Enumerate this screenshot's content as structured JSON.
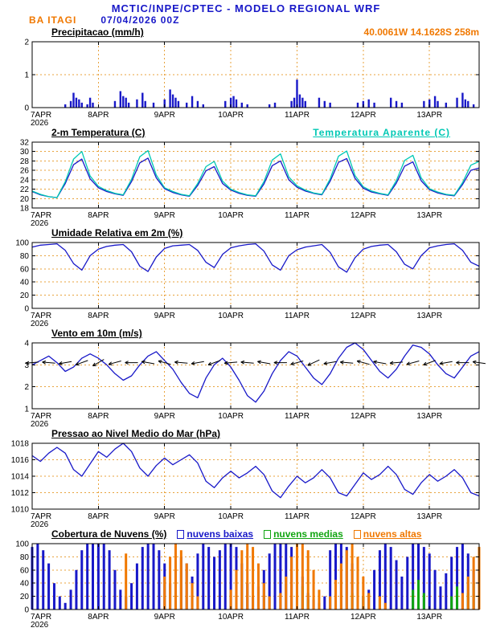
{
  "palette": {
    "blue": "#1818c8",
    "orange": "#f07800",
    "cyan": "#00c8b4",
    "green": "#11a511"
  },
  "header": {
    "title": "MCTIC/INPE/CPTEC - MODELO REGIONAL WRF",
    "station": "BA ITAGI",
    "run": "07/04/2026 00Z",
    "location": "40.0061W 14.1628S 258m"
  },
  "x_axis": {
    "total_hours": 162,
    "tick_labels": [
      "7APR",
      "8APR",
      "9APR",
      "10APR",
      "11APR",
      "12APR",
      "13APR"
    ],
    "year_label": "2026"
  },
  "chart_data": [
    {
      "id": "precip",
      "type": "bar",
      "title": "Precipitacao (mm/h)",
      "ylabel": "mm/h",
      "ylim": [
        0,
        2
      ],
      "yticks": [
        0,
        1,
        2
      ],
      "series": [
        {
          "kind": "bars",
          "name": "precipitacao",
          "color": "#1818c8",
          "pairs": [
            [
              12,
              0.1
            ],
            [
              14,
              0.2
            ],
            [
              15,
              0.45
            ],
            [
              16,
              0.3
            ],
            [
              17,
              0.25
            ],
            [
              18,
              0.15
            ],
            [
              20,
              0.1
            ],
            [
              21,
              0.3
            ],
            [
              22,
              0.15
            ],
            [
              30,
              0.2
            ],
            [
              32,
              0.5
            ],
            [
              33,
              0.35
            ],
            [
              34,
              0.3
            ],
            [
              35,
              0.15
            ],
            [
              38,
              0.25
            ],
            [
              40,
              0.45
            ],
            [
              41,
              0.2
            ],
            [
              44,
              0.15
            ],
            [
              48,
              0.25
            ],
            [
              50,
              0.55
            ],
            [
              51,
              0.4
            ],
            [
              52,
              0.3
            ],
            [
              53,
              0.2
            ],
            [
              56,
              0.15
            ],
            [
              58,
              0.35
            ],
            [
              60,
              0.2
            ],
            [
              62,
              0.1
            ],
            [
              70,
              0.2
            ],
            [
              72,
              0.3
            ],
            [
              73,
              0.35
            ],
            [
              74,
              0.25
            ],
            [
              76,
              0.15
            ],
            [
              78,
              0.1
            ],
            [
              86,
              0.1
            ],
            [
              88,
              0.15
            ],
            [
              94,
              0.2
            ],
            [
              95,
              0.3
            ],
            [
              96,
              0.85
            ],
            [
              97,
              0.4
            ],
            [
              98,
              0.3
            ],
            [
              99,
              0.2
            ],
            [
              104,
              0.3
            ],
            [
              106,
              0.2
            ],
            [
              108,
              0.15
            ],
            [
              118,
              0.15
            ],
            [
              120,
              0.2
            ],
            [
              122,
              0.25
            ],
            [
              124,
              0.15
            ],
            [
              130,
              0.3
            ],
            [
              132,
              0.2
            ],
            [
              134,
              0.15
            ],
            [
              142,
              0.2
            ],
            [
              144,
              0.25
            ],
            [
              146,
              0.35
            ],
            [
              147,
              0.2
            ],
            [
              150,
              0.15
            ],
            [
              154,
              0.3
            ],
            [
              156,
              0.45
            ],
            [
              157,
              0.25
            ],
            [
              158,
              0.2
            ],
            [
              160,
              0.1
            ]
          ]
        }
      ]
    },
    {
      "id": "temp2m",
      "type": "line",
      "title": "2-m Temperatura (C)",
      "ylabel": "C",
      "ylim": [
        18,
        32
      ],
      "yticks": [
        18,
        20,
        22,
        24,
        26,
        28,
        30,
        32
      ],
      "series": [
        {
          "kind": "line",
          "name": "2-m temperatura",
          "label": "2-m Temperatura (C)",
          "color": "#1818c8",
          "step_hours": 3,
          "values": [
            21.5,
            20.8,
            20.4,
            20.2,
            23.2,
            27.2,
            28.4,
            24.2,
            22.3,
            21.5,
            21.0,
            20.7,
            23.6,
            27.6,
            28.6,
            24.4,
            22.1,
            21.3,
            20.8,
            20.5,
            22.8,
            25.9,
            26.8,
            23.2,
            21.8,
            21.1,
            20.7,
            20.5,
            23.1,
            27.0,
            28.0,
            24.0,
            22.4,
            21.6,
            21.1,
            20.8,
            23.7,
            27.7,
            28.5,
            24.3,
            22.2,
            21.4,
            21.0,
            20.7,
            23.3,
            26.9,
            27.8,
            23.8,
            21.9,
            21.2,
            20.8,
            20.6,
            23.0,
            26.0,
            26.5
          ]
        },
        {
          "kind": "line",
          "name": "temperatura aparente",
          "label": "Temperatura Aparente (C)",
          "color": "#00c8b4",
          "step_hours": 3,
          "values": [
            21.6,
            20.9,
            20.4,
            20.2,
            23.6,
            28.4,
            30.0,
            24.8,
            22.6,
            21.7,
            21.1,
            20.8,
            24.1,
            28.9,
            30.2,
            25.0,
            22.3,
            21.5,
            20.9,
            20.6,
            23.2,
            26.8,
            27.9,
            23.7,
            22.0,
            21.3,
            20.8,
            20.6,
            23.6,
            28.2,
            29.5,
            24.6,
            22.7,
            21.8,
            21.2,
            20.9,
            24.2,
            29.0,
            30.1,
            24.9,
            22.5,
            21.6,
            21.1,
            20.8,
            23.8,
            28.1,
            29.2,
            24.4,
            22.1,
            21.4,
            20.9,
            20.7,
            23.4,
            27.1,
            27.9
          ]
        }
      ]
    },
    {
      "id": "rh2m",
      "type": "line",
      "title": "Umidade Relativa em 2m (%)",
      "ylabel": "%",
      "ylim": [
        0,
        100
      ],
      "yticks": [
        0,
        20,
        40,
        60,
        80,
        100
      ],
      "series": [
        {
          "kind": "line",
          "name": "umidade relativa",
          "color": "#1818c8",
          "step_hours": 3,
          "values": [
            93,
            96,
            97,
            98,
            88,
            68,
            58,
            80,
            90,
            94,
            96,
            97,
            86,
            64,
            56,
            78,
            91,
            95,
            96,
            97,
            88,
            70,
            62,
            82,
            92,
            95,
            97,
            98,
            87,
            66,
            58,
            80,
            89,
            93,
            95,
            97,
            85,
            63,
            55,
            77,
            90,
            94,
            96,
            97,
            86,
            67,
            60,
            80,
            92,
            95,
            97,
            98,
            88,
            70,
            64
          ]
        }
      ]
    },
    {
      "id": "wind10m",
      "type": "line",
      "title": "Vento em 10m (m/s)",
      "ylabel": "m/s",
      "ylim": [
        1,
        4
      ],
      "yticks": [
        1,
        2,
        3,
        4
      ],
      "series": [
        {
          "kind": "line",
          "name": "velocidade do vento",
          "color": "#1818c8",
          "step_hours": 3,
          "values": [
            3.0,
            3.2,
            3.4,
            3.1,
            2.7,
            2.9,
            3.3,
            3.5,
            3.3,
            3.0,
            2.6,
            2.3,
            2.5,
            3.0,
            3.4,
            3.6,
            3.2,
            2.8,
            2.2,
            1.7,
            1.5,
            2.4,
            3.0,
            3.3,
            2.9,
            2.3,
            1.6,
            1.3,
            1.8,
            2.6,
            3.2,
            3.6,
            3.4,
            2.9,
            2.4,
            2.1,
            2.6,
            3.3,
            3.8,
            4.0,
            3.7,
            3.2,
            2.7,
            2.4,
            2.8,
            3.4,
            3.9,
            3.8,
            3.5,
            3.0,
            2.6,
            2.4,
            2.9,
            3.4,
            3.6
          ]
        },
        {
          "kind": "barbs",
          "name": "vetores de vento",
          "color": "#000000",
          "step_hours": 6,
          "level": 3.1,
          "angles_deg": [
            185,
            175,
            190,
            200,
            210,
            195,
            180,
            170,
            165,
            175,
            190,
            200,
            185,
            175,
            170,
            180,
            195,
            205,
            190,
            175,
            165,
            170,
            185,
            195,
            200,
            190,
            180,
            172
          ]
        }
      ]
    },
    {
      "id": "mslp",
      "type": "line",
      "title": "Pressao ao Nivel Medio do Mar (hPa)",
      "ylabel": "hPa",
      "ylim": [
        1010,
        1018
      ],
      "yticks": [
        1010,
        1012,
        1014,
        1016,
        1018
      ],
      "series": [
        {
          "kind": "line",
          "name": "pressao",
          "color": "#1818c8",
          "step_hours": 3,
          "values": [
            1016.5,
            1015.8,
            1016.8,
            1017.5,
            1016.8,
            1014.8,
            1014.0,
            1015.5,
            1017.0,
            1016.3,
            1017.3,
            1018.0,
            1017.0,
            1015.0,
            1014.0,
            1015.3,
            1016.2,
            1015.4,
            1016.0,
            1016.6,
            1015.6,
            1013.4,
            1012.6,
            1013.8,
            1014.6,
            1013.8,
            1014.4,
            1015.2,
            1014.2,
            1012.2,
            1011.4,
            1012.8,
            1014.0,
            1013.2,
            1013.8,
            1014.8,
            1013.8,
            1012.0,
            1011.6,
            1013.0,
            1014.4,
            1013.6,
            1014.2,
            1015.2,
            1014.2,
            1012.4,
            1011.8,
            1013.2,
            1014.2,
            1013.4,
            1014.0,
            1014.8,
            1013.8,
            1012.0,
            1011.6
          ]
        }
      ]
    },
    {
      "id": "clouds",
      "type": "bar",
      "title": "Cobertura de Nuvens (%)",
      "ylabel": "%",
      "ylim": [
        0,
        100
      ],
      "yticks": [
        0,
        20,
        40,
        60,
        80,
        100
      ],
      "series": [
        {
          "kind": "bars",
          "name": "nuvens baixas",
          "label": "nuvens baixas",
          "color": "#1818c8",
          "step_hours": 2,
          "values": [
            95,
            100,
            90,
            70,
            40,
            20,
            10,
            30,
            60,
            90,
            100,
            100,
            100,
            100,
            90,
            60,
            30,
            20,
            40,
            70,
            95,
            100,
            100,
            90,
            70,
            40,
            60,
            80,
            70,
            50,
            85,
            100,
            95,
            80,
            90,
            100,
            100,
            95,
            70,
            40,
            20,
            35,
            60,
            85,
            100,
            100,
            100,
            95,
            80,
            50,
            25,
            15,
            10,
            20,
            90,
            100,
            100,
            95,
            70,
            40,
            20,
            30,
            60,
            90,
            100,
            95,
            75,
            50,
            80,
            100,
            100,
            95,
            85,
            60,
            35,
            55,
            80,
            95,
            100,
            85,
            60,
            40
          ]
        },
        {
          "kind": "bars",
          "name": "nuvens medias",
          "label": "nuvens medias",
          "color": "#11a511",
          "step_hours": 2,
          "values": [
            0,
            0,
            0,
            0,
            0,
            0,
            0,
            0,
            0,
            0,
            0,
            0,
            0,
            0,
            0,
            0,
            0,
            0,
            0,
            0,
            0,
            0,
            0,
            0,
            0,
            0,
            0,
            0,
            0,
            0,
            0,
            0,
            0,
            0,
            0,
            0,
            0,
            0,
            0,
            0,
            0,
            0,
            0,
            0,
            0,
            0,
            0,
            0,
            20,
            35,
            15,
            0,
            0,
            0,
            0,
            0,
            0,
            0,
            25,
            40,
            20,
            0,
            0,
            15,
            0,
            0,
            0,
            0,
            0,
            30,
            45,
            25,
            0,
            0,
            0,
            0,
            20,
            35,
            0,
            25,
            40,
            30
          ]
        },
        {
          "kind": "bars",
          "name": "nuvens altas",
          "label": "nuvens altas",
          "color": "#f07800",
          "step_hours": 2,
          "values": [
            0,
            0,
            0,
            0,
            0,
            0,
            0,
            0,
            0,
            0,
            0,
            0,
            0,
            0,
            0,
            0,
            0,
            85,
            0,
            0,
            0,
            0,
            0,
            0,
            50,
            80,
            100,
            90,
            70,
            40,
            20,
            0,
            0,
            0,
            0,
            0,
            30,
            60,
            90,
            100,
            95,
            70,
            40,
            20,
            0,
            25,
            50,
            80,
            100,
            100,
            90,
            60,
            30,
            0,
            20,
            45,
            70,
            90,
            100,
            80,
            50,
            25,
            0,
            20,
            10,
            0,
            0,
            0,
            0,
            0,
            0,
            0,
            0,
            0,
            0,
            0,
            0,
            0,
            25,
            50,
            80,
            95
          ]
        }
      ]
    }
  ]
}
